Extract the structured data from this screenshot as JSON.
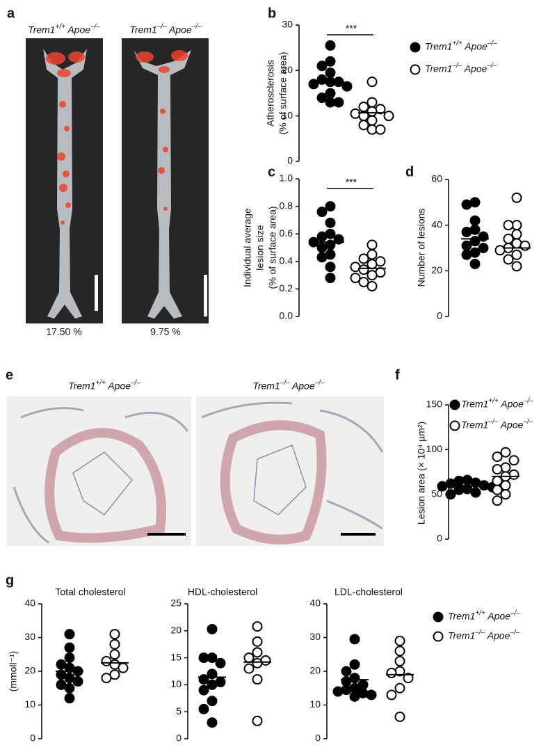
{
  "figure": {
    "a": {
      "panel": "a",
      "labels": [
        "Trem1+/+ Apoe–/–",
        "Trem1–/– Apoe–/–"
      ],
      "captions": [
        "17.50 %",
        "9.75 %"
      ]
    },
    "e": {
      "panel": "e",
      "labels": [
        "Trem1+/+ Apoe–/–",
        "Trem1–/– Apoe–/–"
      ]
    }
  },
  "chart_data": [
    {
      "type": "strip",
      "panel": "b",
      "ylabel": [
        "Atherosclerosis",
        "(% of surface area)"
      ],
      "ylim": [
        0,
        30
      ],
      "yticks": [
        0,
        10,
        20,
        30
      ],
      "significance": "***",
      "legend": true,
      "series": [
        {
          "name": "Trem1+/+ Apoe–/–",
          "color": "#000000",
          "filled": true,
          "mean": 17.5,
          "values": [
            25.5,
            22,
            21,
            19.5,
            18,
            17.5,
            17.5,
            17,
            16.5,
            15,
            14,
            13,
            13
          ]
        },
        {
          "name": "Trem1–/– Apoe–/–",
          "color": "#000000",
          "filled": false,
          "mean": 10.7,
          "values": [
            17.5,
            13,
            12,
            11.5,
            11,
            10.5,
            10,
            10,
            9,
            8,
            7,
            7
          ]
        }
      ]
    },
    {
      "type": "strip",
      "panel": "c",
      "ylabel": [
        "Individual average",
        "lesion size",
        "(% of surface area)"
      ],
      "ylim": [
        0,
        1
      ],
      "yticks": [
        {
          "value": 0,
          "label": "0.0"
        },
        0.2,
        0.4,
        0.6,
        0.8,
        {
          "value": 1,
          "label": "1.0"
        }
      ],
      "significance": "***",
      "legend": false,
      "series": [
        {
          "color": "#000000",
          "filled": true,
          "mean": 0.54,
          "values": [
            0.8,
            0.76,
            0.68,
            0.6,
            0.58,
            0.56,
            0.54,
            0.52,
            0.5,
            0.45,
            0.43,
            0.36,
            0.28
          ]
        },
        {
          "color": "#000000",
          "filled": false,
          "mean": 0.35,
          "values": [
            0.52,
            0.45,
            0.42,
            0.4,
            0.38,
            0.36,
            0.34,
            0.32,
            0.3,
            0.28,
            0.25,
            0.22
          ]
        }
      ]
    },
    {
      "type": "strip",
      "panel": "d",
      "ylabel": [
        "Number of lesions"
      ],
      "ylim": [
        0,
        60
      ],
      "yticks": [
        0,
        20,
        40,
        60
      ],
      "legend": false,
      "series": [
        {
          "color": "#000000",
          "filled": true,
          "mean": 34,
          "values": [
            50,
            49,
            42,
            38,
            37,
            35,
            33,
            31,
            30,
            28,
            27,
            23
          ]
        },
        {
          "color": "#000000",
          "filled": false,
          "mean": 30,
          "values": [
            52,
            40,
            40,
            36,
            34,
            32,
            31,
            30,
            29,
            27,
            25,
            22
          ]
        }
      ]
    },
    {
      "type": "strip",
      "panel": "f",
      "ylabel": [
        "Lesion area (× 10⁴ µm²)"
      ],
      "ylim": [
        0,
        150
      ],
      "yticks": [
        0,
        50,
        100,
        150
      ],
      "legend": true,
      "series": [
        {
          "name": "Trem1+/+ Apoe–/–",
          "color": "#000000",
          "filled": true,
          "mean": 60,
          "values": [
            66,
            65,
            63,
            62,
            60,
            59,
            58,
            56,
            55,
            52,
            50
          ]
        },
        {
          "name": "Trem1–/– Apoe–/–",
          "color": "#000000",
          "filled": false,
          "mean": 70,
          "values": [
            97,
            92,
            88,
            80,
            78,
            72,
            70,
            65,
            60,
            55,
            50,
            43
          ]
        }
      ]
    },
    {
      "type": "strip",
      "panel": "g",
      "title": "Total cholesterol",
      "ylabel": [
        "(mmoll⁻¹)"
      ],
      "ylim": [
        0,
        40
      ],
      "yticks": [
        0,
        10,
        20,
        30,
        40
      ],
      "legend": false,
      "series": [
        {
          "color": "#000000",
          "filled": true,
          "mean": 20,
          "values": [
            31,
            27,
            24,
            22,
            21,
            20,
            19,
            18,
            17,
            16,
            15,
            12
          ]
        },
        {
          "color": "#000000",
          "filled": false,
          "mean": 22.5,
          "values": [
            31,
            28,
            25,
            23,
            22,
            21,
            19,
            18
          ]
        }
      ]
    },
    {
      "type": "strip",
      "title": "HDL-cholesterol",
      "ylim": [
        0,
        25
      ],
      "yticks": [
        0,
        5,
        10,
        15,
        20,
        25
      ],
      "legend": false,
      "series": [
        {
          "color": "#000000",
          "filled": true,
          "mean": 11.4,
          "values": [
            20.3,
            15,
            15,
            14,
            12,
            11,
            10.5,
            10,
            9,
            7,
            5.5,
            3
          ]
        },
        {
          "color": "#000000",
          "filled": false,
          "mean": 14.2,
          "values": [
            20.8,
            18,
            16,
            15,
            14.5,
            14,
            13,
            11,
            3.3
          ]
        }
      ]
    },
    {
      "type": "strip",
      "title": "LDL-cholesterol",
      "ylim": [
        0,
        40
      ],
      "yticks": [
        0,
        10,
        20,
        30,
        40
      ],
      "legend": true,
      "series": [
        {
          "name": "Trem1+/+ Apoe–/–",
          "color": "#000000",
          "filled": true,
          "mean": 17.5,
          "values": [
            29.5,
            22,
            20,
            18,
            17,
            16,
            15,
            14.5,
            14,
            13.5,
            13,
            12.5
          ]
        },
        {
          "name": "Trem1–/– Apoe–/–",
          "color": "#000000",
          "filled": false,
          "mean": 19,
          "values": [
            29,
            26,
            23,
            20,
            19.5,
            18,
            15,
            13,
            6.5
          ]
        }
      ]
    }
  ]
}
